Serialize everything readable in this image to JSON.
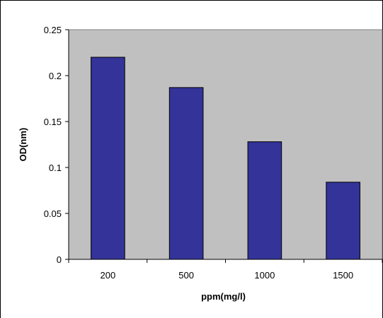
{
  "chart_data": {
    "type": "bar",
    "categories": [
      "200",
      "500",
      "1000",
      "1500"
    ],
    "values": [
      0.22,
      0.187,
      0.128,
      0.084
    ],
    "title": "",
    "xlabel": "ppm(mg/l)",
    "ylabel": "OD(nm)",
    "ylim": [
      0,
      0.25
    ],
    "yticks": [
      "0",
      "0.05",
      "0.1",
      "0.15",
      "0.2",
      "0.25"
    ],
    "grid": false,
    "legend": "none",
    "colors": {
      "bar_fill": "#333399",
      "bar_stroke": "#000000",
      "plot_background": "#c0c0c0",
      "page_background": "#ffffff"
    }
  }
}
